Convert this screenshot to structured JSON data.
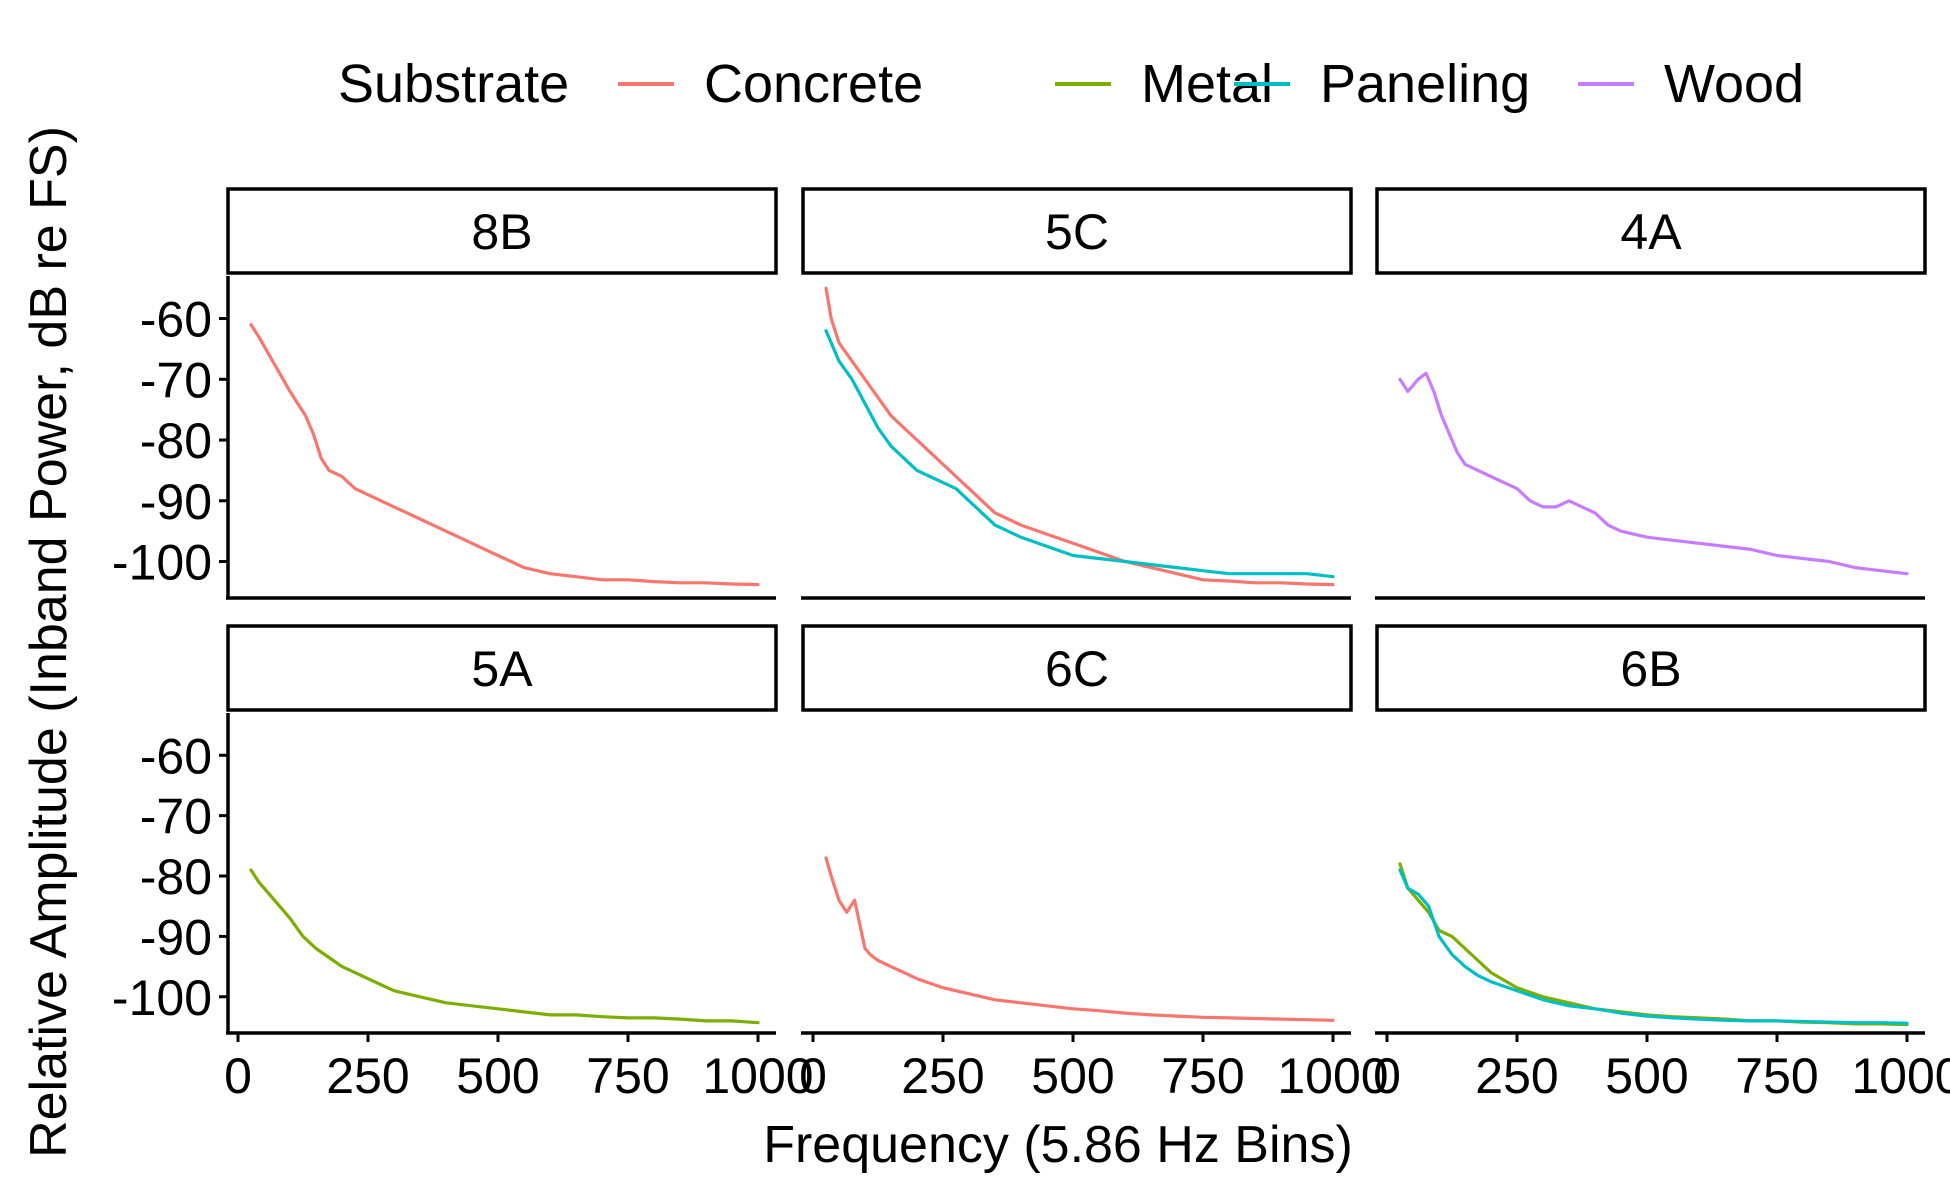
{
  "chart_data": {
    "type": "line",
    "xlabel": "Frequency (5.86 Hz Bins)",
    "ylabel": "Relative Amplitude (Inband Power, dB re FS)",
    "xlim": [
      0,
      1000
    ],
    "ylim": [
      -106,
      -53
    ],
    "x_ticks": [
      0,
      250,
      500,
      750,
      1000
    ],
    "x_tick_labels": [
      "0",
      "250",
      "500",
      "750",
      "1000"
    ],
    "y_ticks": [
      -60,
      -70,
      -80,
      -90,
      -100
    ],
    "y_tick_labels": [
      "-60",
      "-70",
      "-80",
      "-90",
      "-100"
    ],
    "grid": false,
    "legend": {
      "title": "Substrate",
      "position": "top",
      "entries": [
        {
          "label": "Concrete",
          "color": "#F8766D"
        },
        {
          "label": "Metal",
          "color": "#7CAE00"
        },
        {
          "label": "Paneling",
          "color": "#00BFC4"
        },
        {
          "label": "Wood",
          "color": "#C77CFF"
        }
      ]
    },
    "panels": [
      {
        "title": "8B",
        "series": [
          {
            "substrate": "Concrete",
            "x": [
              25,
              40,
              60,
              80,
              100,
              115,
              130,
              145,
              160,
              175,
              200,
              225,
              250,
              275,
              300,
              325,
              350,
              375,
              400,
              425,
              450,
              475,
              500,
              525,
              550,
              600,
              650,
              700,
              750,
              800,
              850,
              900,
              950,
              1000
            ],
            "y": [
              -61,
              -63,
              -66,
              -69,
              -72,
              -74,
              -76,
              -79,
              -83,
              -85,
              -86,
              -88,
              -89,
              -90,
              -91,
              -92,
              -93,
              -94,
              -95,
              -96,
              -97,
              -98,
              -99,
              -100,
              -101,
              -102,
              -102.5,
              -103,
              -103,
              -103.3,
              -103.5,
              -103.5,
              -103.7,
              -103.8
            ]
          }
        ]
      },
      {
        "title": "5C",
        "series": [
          {
            "substrate": "Concrete",
            "x": [
              25,
              35,
              50,
              75,
              100,
              125,
              150,
              175,
              200,
              225,
              250,
              275,
              300,
              325,
              350,
              375,
              400,
              450,
              500,
              550,
              600,
              650,
              700,
              750,
              800,
              850,
              900,
              950,
              1000
            ],
            "y": [
              -55,
              -60,
              -64,
              -67,
              -70,
              -73,
              -76,
              -78,
              -80,
              -82,
              -84,
              -86,
              -88,
              -90,
              -92,
              -93,
              -94,
              -95.5,
              -97,
              -98.5,
              -100,
              -101,
              -102,
              -103,
              -103.2,
              -103.5,
              -103.5,
              -103.7,
              -103.8
            ]
          },
          {
            "substrate": "Paneling",
            "x": [
              25,
              35,
              50,
              75,
              100,
              125,
              150,
              175,
              200,
              225,
              250,
              275,
              300,
              325,
              350,
              375,
              400,
              450,
              500,
              550,
              600,
              650,
              700,
              750,
              800,
              850,
              900,
              950,
              1000
            ],
            "y": [
              -62,
              -64,
              -67,
              -70,
              -74,
              -78,
              -81,
              -83,
              -85,
              -86,
              -87,
              -88,
              -90,
              -92,
              -94,
              -95,
              -96,
              -97.5,
              -99,
              -99.5,
              -100,
              -100.5,
              -101,
              -101.5,
              -102,
              -102,
              -102,
              -102,
              -102.5
            ]
          }
        ]
      },
      {
        "title": "4A",
        "series": [
          {
            "substrate": "Wood",
            "x": [
              25,
              40,
              60,
              75,
              90,
              105,
              120,
              135,
              150,
              175,
              200,
              225,
              250,
              275,
              300,
              325,
              350,
              375,
              400,
              425,
              450,
              500,
              550,
              600,
              650,
              700,
              750,
              800,
              850,
              900,
              950,
              1000
            ],
            "y": [
              -70,
              -72,
              -70,
              -69,
              -72,
              -76,
              -79,
              -82,
              -84,
              -85,
              -86,
              -87,
              -88,
              -90,
              -91,
              -91,
              -90,
              -91,
              -92,
              -94,
              -95,
              -96,
              -96.5,
              -97,
              -97.5,
              -98,
              -99,
              -99.5,
              -100,
              -101,
              -101.5,
              -102
            ]
          }
        ]
      },
      {
        "title": "5A",
        "series": [
          {
            "substrate": "Metal",
            "x": [
              25,
              40,
              60,
              80,
              100,
              125,
              150,
              175,
              200,
              225,
              250,
              275,
              300,
              325,
              350,
              375,
              400,
              450,
              500,
              550,
              600,
              650,
              700,
              750,
              800,
              850,
              900,
              950,
              1000
            ],
            "y": [
              -79,
              -81,
              -83,
              -85,
              -87,
              -90,
              -92,
              -93.5,
              -95,
              -96,
              -97,
              -98,
              -99,
              -99.5,
              -100,
              -100.5,
              -101,
              -101.5,
              -102,
              -102.5,
              -103,
              -103,
              -103.3,
              -103.5,
              -103.5,
              -103.7,
              -104,
              -104,
              -104.3
            ]
          }
        ]
      },
      {
        "title": "6C",
        "series": [
          {
            "substrate": "Concrete",
            "x": [
              25,
              35,
              50,
              65,
              80,
              90,
              100,
              110,
              125,
              150,
              175,
              200,
              250,
              300,
              350,
              400,
              450,
              500,
              550,
              600,
              650,
              700,
              750,
              800,
              850,
              900,
              950,
              1000
            ],
            "y": [
              -77,
              -80,
              -84,
              -86,
              -84,
              -88,
              -92,
              -93,
              -94,
              -95,
              -96,
              -97,
              -98.5,
              -99.5,
              -100.5,
              -101,
              -101.5,
              -102,
              -102.3,
              -102.7,
              -103,
              -103.2,
              -103.4,
              -103.5,
              -103.6,
              -103.7,
              -103.8,
              -103.9
            ]
          }
        ]
      },
      {
        "title": "6B",
        "series": [
          {
            "substrate": "Metal",
            "x": [
              25,
              40,
              60,
              80,
              100,
              125,
              150,
              175,
              200,
              250,
              300,
              350,
              400,
              450,
              500,
              550,
              600,
              650,
              700,
              750,
              800,
              850,
              900,
              950,
              1000
            ],
            "y": [
              -78,
              -82,
              -84,
              -86,
              -89,
              -90,
              -92,
              -94,
              -96,
              -98.5,
              -100,
              -101,
              -102,
              -102.5,
              -103,
              -103.3,
              -103.5,
              -103.7,
              -104,
              -104,
              -104.2,
              -104.3,
              -104.5,
              -104.5,
              -104.6
            ]
          },
          {
            "substrate": "Paneling",
            "x": [
              25,
              40,
              60,
              80,
              100,
              125,
              150,
              175,
              200,
              250,
              300,
              350,
              400,
              450,
              500,
              550,
              600,
              650,
              700,
              750,
              800,
              850,
              900,
              950,
              1000
            ],
            "y": [
              -79,
              -82,
              -83,
              -85,
              -90,
              -93,
              -95,
              -96.5,
              -97.5,
              -99,
              -100.5,
              -101.5,
              -102,
              -102.7,
              -103.2,
              -103.5,
              -103.7,
              -103.9,
              -104,
              -104,
              -104.1,
              -104.2,
              -104.3,
              -104.3,
              -104.4
            ]
          }
        ]
      }
    ]
  }
}
